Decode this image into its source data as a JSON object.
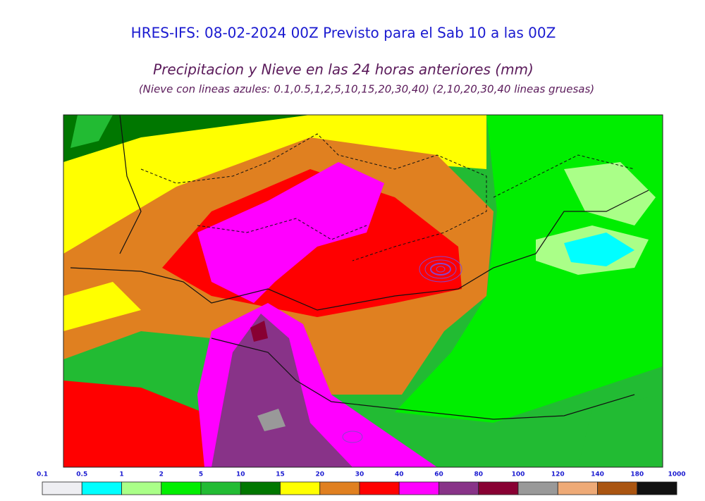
{
  "header": {
    "title": "HRES-IFS: 08-02-2024 00Z Previsto para el Sab 10 a las 00Z",
    "subtitle": "Precipitacion y Nieve en las 24 horas anteriores (mm)",
    "note": "(Nieve con lineas azules: 0.1,0.5,1,2,5,10,15,20,30,40)  (2,10,20,30,40 lineas gruesas)"
  },
  "legend": {
    "ticks": [
      "0.1",
      "0.5",
      "1",
      "2",
      "5",
      "10",
      "15",
      "20",
      "30",
      "40",
      "60",
      "80",
      "100",
      "120",
      "140",
      "180",
      "1000"
    ],
    "colors": [
      "#eeeef2",
      "#00ffff",
      "#aaff88",
      "#00ee00",
      "#22bb33",
      "#007700",
      "#ffff00",
      "#e08020",
      "#ff0000",
      "#ff00ff",
      "#883388",
      "#880033",
      "#999999",
      "#eeaa77",
      "#aa5511",
      "#111111"
    ]
  }
}
